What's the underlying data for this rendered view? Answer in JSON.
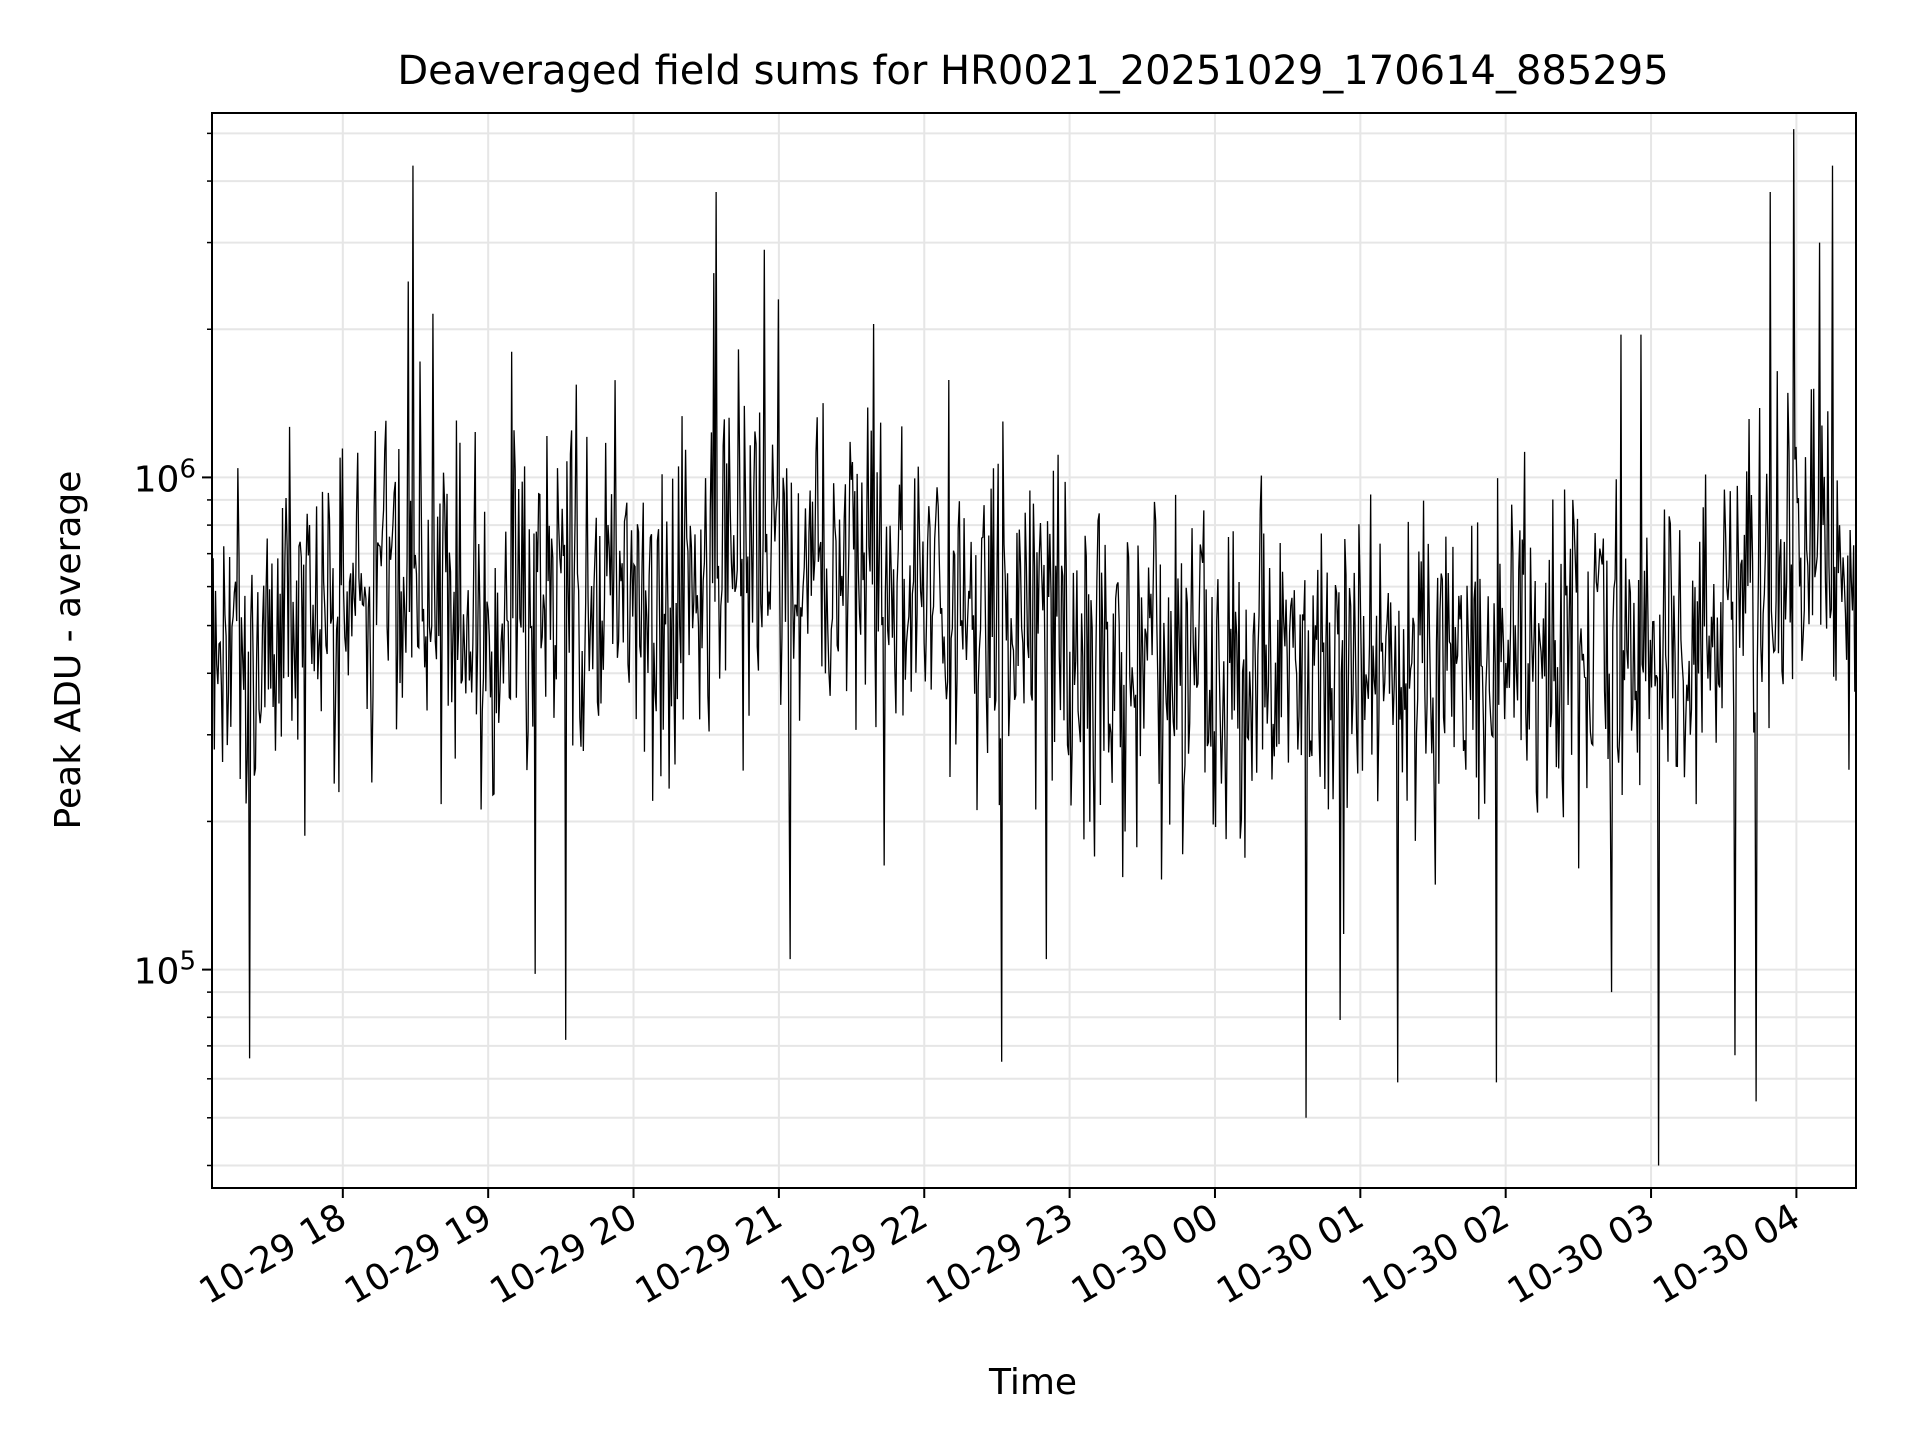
{
  "chart_data": {
    "type": "line",
    "title": "Deaveraged field sums for HR0021_20251029_170614_885295",
    "xlabel": "Time",
    "ylabel": "Peak ADU - average",
    "yscale": "log",
    "ylim": [
      36000,
      5500000
    ],
    "xlim_hours_after_17": [
      0.1,
      11.41
    ],
    "grid": true,
    "line_color": "#000000",
    "x_tick_labels": [
      "10-29 18",
      "10-29 19",
      "10-29 20",
      "10-29 21",
      "10-29 22",
      "10-29 23",
      "10-30 00",
      "10-30 01",
      "10-30 02",
      "10-30 03",
      "10-30 04"
    ],
    "x_tick_hours_after_17": [
      1,
      2,
      3,
      4,
      5,
      6,
      7,
      8,
      9,
      10,
      11
    ],
    "y_major_ticks": [
      {
        "value": 100000,
        "base": "10",
        "exp": "5"
      },
      {
        "value": 1000000,
        "base": "10",
        "exp": "6"
      }
    ],
    "series": [
      {
        "name": "Peak ADU - average",
        "baseline_anchors": {
          "hours_after_17": [
            0.1,
            0.5,
            1.0,
            1.4,
            1.7,
            2.0,
            2.5,
            3.0,
            3.4,
            3.6,
            3.9,
            4.3,
            4.7,
            5.0,
            5.5,
            6.0,
            6.5,
            7.0,
            7.5,
            8.0,
            8.5,
            9.0,
            9.5,
            10.0,
            10.4,
            10.7,
            11.0,
            11.2,
            11.41
          ],
          "log10_level": [
            5.68,
            5.7,
            5.72,
            5.8,
            5.74,
            5.7,
            5.75,
            5.78,
            5.74,
            5.84,
            5.8,
            5.79,
            5.76,
            5.76,
            5.72,
            5.66,
            5.64,
            5.64,
            5.62,
            5.62,
            5.63,
            5.64,
            5.65,
            5.66,
            5.7,
            5.78,
            5.88,
            5.86,
            5.7
          ]
        },
        "noise_log10_sd": 0.17,
        "num_samples": 1400,
        "peaks": [
          {
            "hours_after_17": 1.48,
            "value": 4300000
          },
          {
            "hours_after_17": 1.45,
            "value": 2500000
          },
          {
            "hours_after_17": 1.62,
            "value": 2150000
          },
          {
            "hours_after_17": 3.57,
            "value": 3800000
          },
          {
            "hours_after_17": 3.55,
            "value": 2600000
          },
          {
            "hours_after_17": 3.9,
            "value": 2900000
          },
          {
            "hours_after_17": 4.0,
            "value": 2300000
          },
          {
            "hours_after_17": 4.65,
            "value": 2050000
          },
          {
            "hours_after_17": 10.82,
            "value": 3800000
          },
          {
            "hours_after_17": 10.98,
            "value": 5100000
          },
          {
            "hours_after_17": 11.25,
            "value": 4300000
          },
          {
            "hours_after_17": 11.16,
            "value": 3000000
          },
          {
            "hours_after_17": 9.79,
            "value": 1950000
          },
          {
            "hours_after_17": 9.93,
            "value": 1950000
          },
          {
            "hours_after_17": 2.16,
            "value": 1800000
          }
        ],
        "dips": [
          {
            "hours_after_17": 0.36,
            "value": 66000
          },
          {
            "hours_after_17": 2.53,
            "value": 72000
          },
          {
            "hours_after_17": 5.53,
            "value": 65000
          },
          {
            "hours_after_17": 7.63,
            "value": 50000
          },
          {
            "hours_after_17": 7.86,
            "value": 79000
          },
          {
            "hours_after_17": 8.26,
            "value": 59000
          },
          {
            "hours_after_17": 8.94,
            "value": 59000
          },
          {
            "hours_after_17": 10.05,
            "value": 40000
          },
          {
            "hours_after_17": 10.72,
            "value": 54000
          },
          {
            "hours_after_17": 10.58,
            "value": 67000
          },
          {
            "hours_after_17": 2.32,
            "value": 98000
          },
          {
            "hours_after_17": 4.08,
            "value": 105000
          },
          {
            "hours_after_17": 5.84,
            "value": 105000
          },
          {
            "hours_after_17": 9.73,
            "value": 90000
          }
        ]
      }
    ]
  }
}
